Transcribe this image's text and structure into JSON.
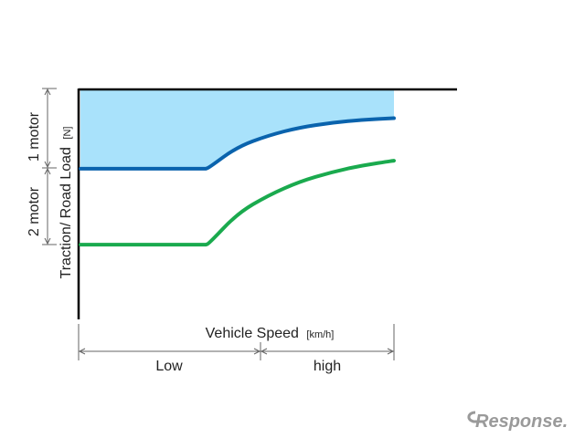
{
  "chart_data": {
    "type": "line",
    "x_label": {
      "main": "Vehicle Speed",
      "unit": "[km/h]"
    },
    "y_label": {
      "main": "Traction/ Road Load",
      "unit": "[N]"
    },
    "speed_ranges": [
      "Low",
      "high"
    ],
    "motor_regions": [
      "1 motor",
      "2 motor"
    ],
    "x": [
      0,
      0.1,
      0.2,
      0.3,
      0.4,
      0.41,
      0.5,
      0.6,
      0.7,
      0.8,
      0.9,
      1.0
    ],
    "series": [
      {
        "id": "upper",
        "color": "#0a63ad",
        "values": [
          0.655,
          0.655,
          0.655,
          0.655,
          0.655,
          0.66,
          0.75,
          0.8,
          0.835,
          0.855,
          0.868,
          0.875
        ]
      },
      {
        "id": "lower",
        "color": "#1aaa4e",
        "values": [
          0.325,
          0.325,
          0.325,
          0.325,
          0.325,
          0.33,
          0.46,
          0.54,
          0.6,
          0.64,
          0.67,
          0.69
        ]
      }
    ],
    "limit_line": 1.0,
    "fill": {
      "between": [
        "upper",
        "limit"
      ],
      "color": "#a9e2fb"
    },
    "grid": false
  },
  "watermark": {
    "text": "Response."
  }
}
